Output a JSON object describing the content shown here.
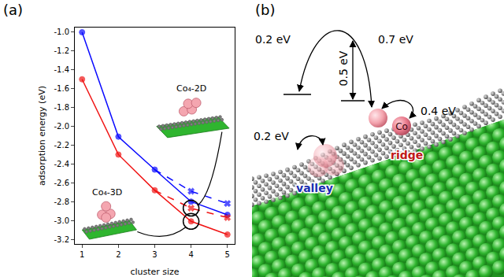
{
  "panel_labels": [
    "(a)",
    "(b)"
  ],
  "chart_data": {
    "type": "line",
    "x_label": "cluster size",
    "y_label": "adsorption energy (eV)",
    "x": [
      1,
      2,
      3,
      4,
      5
    ],
    "series": [
      {
        "color": "#0a0aff",
        "values": [
          -1.0,
          -2.11,
          -2.46,
          -2.8,
          -2.94
        ],
        "line_style": "solid",
        "marker": "circle"
      },
      {
        "color": "#0a0aff",
        "values": [
          null,
          null,
          -2.46,
          -2.69,
          -2.82
        ],
        "line_style": "dashed",
        "marker": "x"
      },
      {
        "color": "#f01414",
        "values": [
          -1.5,
          -2.3,
          -2.68,
          -3.01,
          -3.15
        ],
        "line_style": "solid",
        "marker": "circle"
      },
      {
        "color": "#f01414",
        "values": [
          null,
          null,
          -2.68,
          -2.87,
          -2.97
        ],
        "line_style": "dashed",
        "marker": "x"
      }
    ],
    "highlight": {
      "x": [
        4,
        4
      ],
      "y": [
        -2.87,
        -3.01
      ],
      "color": "#000000",
      "marker": "circle-open"
    },
    "annotations": [
      "Co₄-2D",
      "Co₄-3D"
    ],
    "xlim": [
      0.8,
      5.2
    ],
    "xticks": [
      1,
      2,
      3,
      4,
      5
    ],
    "ylim": [
      -3.25,
      -0.95
    ],
    "yticks": [
      {
        "value": -1.0,
        "label": "-1.0"
      },
      -1.2,
      -1.4,
      -1.6,
      -1.8,
      {
        "value": -2.0,
        "label": "-2.0"
      },
      -2.2,
      -2.4,
      -2.6,
      -2.8,
      {
        "value": -3.0,
        "label": "-3.0"
      },
      -3.2
    ],
    "grid": false
  },
  "diagram": {
    "energies": [
      "0.2 eV",
      "0.7 eV",
      "0.5 eV",
      "0.4 eV",
      "0.2 eV"
    ],
    "atom": "Co",
    "sites": [
      "ridge",
      "valley"
    ]
  }
}
